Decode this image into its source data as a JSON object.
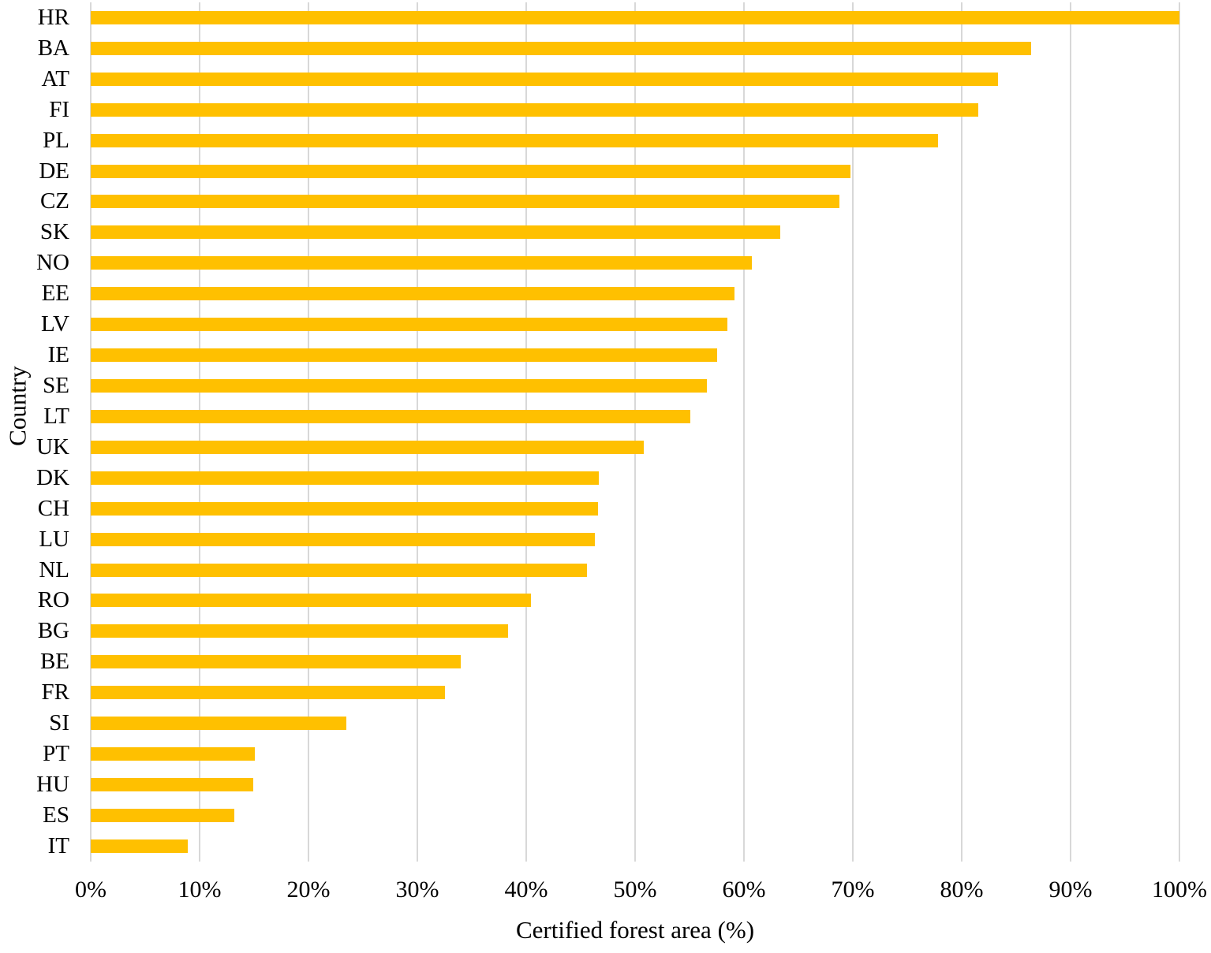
{
  "chart_data": {
    "type": "bar",
    "orientation": "horizontal",
    "title": "",
    "xlabel": "Certified forest area (%)",
    "ylabel": "Country",
    "xlim": [
      0,
      100
    ],
    "x_tick_labels": [
      "0%",
      "10%",
      "20%",
      "30%",
      "40%",
      "50%",
      "60%",
      "70%",
      "80%",
      "90%",
      "100%"
    ],
    "x_tick_values": [
      0,
      10,
      20,
      30,
      40,
      50,
      60,
      70,
      80,
      90,
      100
    ],
    "grid": "vertical-only",
    "legend": "none",
    "categories": [
      "HR",
      "BA",
      "AT",
      "FI",
      "PL",
      "DE",
      "CZ",
      "SK",
      "NO",
      "EE",
      "LV",
      "IE",
      "SE",
      "LT",
      "UK",
      "DK",
      "CH",
      "LU",
      "NL",
      "RO",
      "BG",
      "BE",
      "FR",
      "SI",
      "PT",
      "HU",
      "ES",
      "IT"
    ],
    "values": [
      100,
      86.4,
      83.3,
      81.5,
      77.8,
      69.8,
      68.8,
      63.3,
      60.7,
      59.1,
      58.5,
      57.5,
      56.6,
      55.1,
      50.8,
      46.7,
      46.6,
      46.3,
      45.6,
      40.4,
      38.3,
      34.0,
      32.5,
      23.5,
      15.1,
      14.9,
      13.2,
      8.9
    ],
    "colors": {
      "bar": "#FFC000",
      "gridline": "#D8D8D8",
      "text": "#000000",
      "background": "#FFFFFF"
    }
  }
}
